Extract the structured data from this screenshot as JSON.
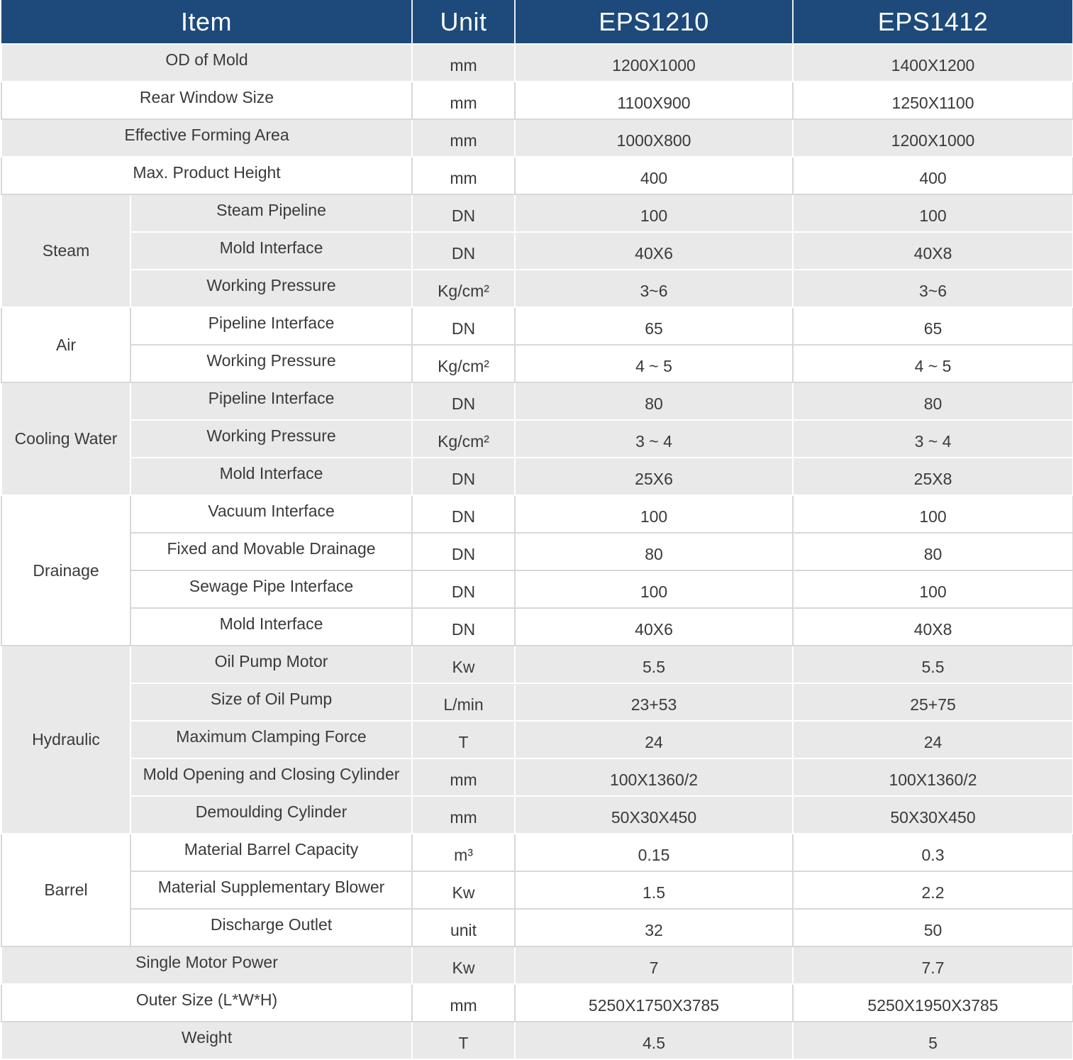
{
  "header": {
    "item": "Item",
    "unit": "Unit",
    "model1": "EPS1210",
    "model2": "EPS1412"
  },
  "rows": [
    {
      "label": "OD of Mold",
      "unit": "mm",
      "v1": "1200X1000",
      "v2": "1400X1200"
    },
    {
      "label": "Rear Window Size",
      "unit": "mm",
      "v1": "1100X900",
      "v2": "1250X1100"
    },
    {
      "label": "Effective Forming Area",
      "unit": "mm",
      "v1": "1000X800",
      "v2": "1200X1000"
    },
    {
      "label": "Max. Product Height",
      "unit": "mm",
      "v1": "400",
      "v2": "400"
    },
    {
      "group": "Steam",
      "label": "Steam Pipeline",
      "unit": "DN",
      "v1": "100",
      "v2": "100"
    },
    {
      "label": "Mold Interface",
      "unit": "DN",
      "v1": "40X6",
      "v2": "40X8"
    },
    {
      "label": "Working Pressure",
      "unit": "Kg/cm²",
      "v1": "3~6",
      "v2": "3~6"
    },
    {
      "group": "Air",
      "label": "Pipeline Interface",
      "unit": "DN",
      "v1": "65",
      "v2": "65"
    },
    {
      "label": "Working Pressure",
      "unit": "Kg/cm²",
      "v1": "4 ~ 5",
      "v2": "4 ~ 5"
    },
    {
      "group": "Cooling Water",
      "label": "Pipeline Interface",
      "unit": "DN",
      "v1": "80",
      "v2": "80"
    },
    {
      "label": "Working Pressure",
      "unit": "Kg/cm²",
      "v1": "3 ~ 4",
      "v2": "3 ~ 4"
    },
    {
      "label": "Mold Interface",
      "unit": "DN",
      "v1": "25X6",
      "v2": "25X8"
    },
    {
      "group": "Drainage",
      "label": "Vacuum Interface",
      "unit": "DN",
      "v1": "100",
      "v2": "100"
    },
    {
      "label": "Fixed and Movable Drainage",
      "unit": "DN",
      "v1": "80",
      "v2": "80"
    },
    {
      "label": "Sewage Pipe Interface",
      "unit": "DN",
      "v1": "100",
      "v2": "100"
    },
    {
      "label": "Mold Interface",
      "unit": "DN",
      "v1": "40X6",
      "v2": "40X8"
    },
    {
      "group": "Hydraulic",
      "label": "Oil Pump Motor",
      "unit": "Kw",
      "v1": "5.5",
      "v2": "5.5"
    },
    {
      "label": "Size of Oil Pump",
      "unit": "L/min",
      "v1": "23+53",
      "v2": "25+75"
    },
    {
      "label": "Maximum Clamping Force",
      "unit": "T",
      "v1": "24",
      "v2": "24"
    },
    {
      "label": "Mold Opening and Closing Cylinder",
      "unit": "mm",
      "v1": "100X1360/2",
      "v2": "100X1360/2"
    },
    {
      "label": "Demoulding Cylinder",
      "unit": "mm",
      "v1": "50X30X450",
      "v2": "50X30X450"
    },
    {
      "group": "Barrel",
      "label": "Material Barrel Capacity",
      "unit": "m³",
      "v1": "0.15",
      "v2": "0.3"
    },
    {
      "label": "Material Supplementary Blower",
      "unit": "Kw",
      "v1": "1.5",
      "v2": "2.2"
    },
    {
      "label": "Discharge Outlet",
      "unit": "unit",
      "v1": "32",
      "v2": "50"
    },
    {
      "label": "Single Motor Power",
      "unit": "Kw",
      "v1": "7",
      "v2": "7.7"
    },
    {
      "label": "Outer Size (L*W*H)",
      "unit": "mm",
      "v1": "5250X1750X3785",
      "v2": "5250X1950X3785"
    },
    {
      "label": "Weight",
      "unit": "T",
      "v1": "4.5",
      "v2": "5"
    }
  ]
}
